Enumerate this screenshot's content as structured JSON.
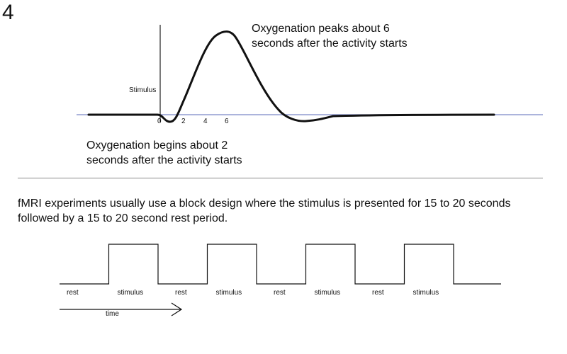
{
  "slide_number": "4",
  "hrf_chart": {
    "stimulus_label": "Stimulus",
    "tick_labels": [
      "0",
      "2",
      "4",
      "6"
    ],
    "peak_annotation": [
      "Oxygenation peaks about 6",
      "seconds after the activity starts"
    ],
    "onset_annotation": [
      "Oxygenation begins about 2",
      "seconds after the activity starts"
    ],
    "colors": {
      "baseline": "#7b86c8",
      "curve": "#111111",
      "axis": "#222222"
    }
  },
  "block_description": [
    "fMRI experiments usually use a block design where the stimulus is presented for 15 to 20 seconds",
    "followed by a 15 to 20 second rest period."
  ],
  "block_design": {
    "blocks": [
      "rest",
      "stimulus",
      "rest",
      "stimulus",
      "rest",
      "stimulus",
      "rest",
      "stimulus"
    ],
    "time_label": "time",
    "colors": {
      "wave": "#111111"
    }
  }
}
